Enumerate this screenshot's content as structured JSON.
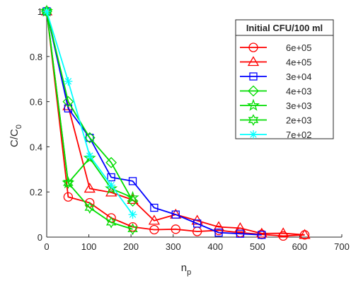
{
  "chart_data": {
    "type": "line",
    "title": "",
    "xlabel": "n",
    "xlabel_sub": "p",
    "ylabel": "C/C",
    "ylabel_sub": "0",
    "xlim": [
      0,
      700
    ],
    "ylim": [
      0,
      1
    ],
    "xticks": [
      0,
      100,
      200,
      300,
      400,
      500,
      600,
      700
    ],
    "yticks": [
      0,
      0.2,
      0.4,
      0.6,
      0.8,
      1
    ],
    "ytick_labels": [
      "0",
      "0.2",
      "0.4",
      "0.6",
      "0.8",
      "1"
    ],
    "grid": false,
    "legend": {
      "title": "Initial CFU/100 ml",
      "position": "top-right"
    },
    "series": [
      {
        "name": "6e+05",
        "color": "#ff0000",
        "marker": "circle",
        "x": [
          0,
          51,
          102,
          153,
          204,
          255,
          306,
          357,
          408,
          459,
          510,
          561,
          612
        ],
        "y": [
          1.0,
          0.178,
          0.152,
          0.085,
          0.045,
          0.033,
          0.035,
          0.025,
          0.03,
          0.02,
          0.012,
          0.005,
          0.01
        ]
      },
      {
        "name": "4e+05",
        "color": "#ff0000",
        "marker": "triangle",
        "x": [
          0,
          51,
          102,
          153,
          204,
          255,
          306,
          357,
          408,
          459,
          510,
          561,
          612
        ],
        "y": [
          1.0,
          0.58,
          0.215,
          0.198,
          0.165,
          0.073,
          0.1,
          0.073,
          0.045,
          0.04,
          0.016,
          0.017,
          0.01
        ]
      },
      {
        "name": "3e+04",
        "color": "#0000ff",
        "marker": "square",
        "x": [
          0,
          51,
          102,
          153,
          204,
          255,
          306,
          357,
          408,
          459,
          510
        ],
        "y": [
          1.0,
          0.57,
          0.44,
          0.265,
          0.248,
          0.13,
          0.1,
          0.06,
          0.02,
          0.015,
          0.01
        ]
      },
      {
        "name": "4e+03",
        "color": "#00dd00",
        "marker": "diamond",
        "x": [
          0,
          51,
          102,
          153,
          204
        ],
        "y": [
          1.0,
          0.6,
          0.44,
          0.33,
          0.16
        ]
      },
      {
        "name": "3e+03",
        "color": "#00dd00",
        "marker": "pentagram",
        "x": [
          0,
          51,
          102,
          153,
          204
        ],
        "y": [
          1.0,
          0.24,
          0.35,
          0.215,
          0.175
        ]
      },
      {
        "name": "2e+03",
        "color": "#00dd00",
        "marker": "hexagram",
        "x": [
          0,
          51,
          102,
          153,
          204
        ],
        "y": [
          1.0,
          0.24,
          0.13,
          0.065,
          0.035
        ]
      },
      {
        "name": "7e+02",
        "color": "#00ffff",
        "marker": "asterisk",
        "x": [
          0,
          51,
          102,
          153,
          204
        ],
        "y": [
          1.0,
          0.69,
          0.36,
          0.23,
          0.1
        ]
      }
    ]
  }
}
